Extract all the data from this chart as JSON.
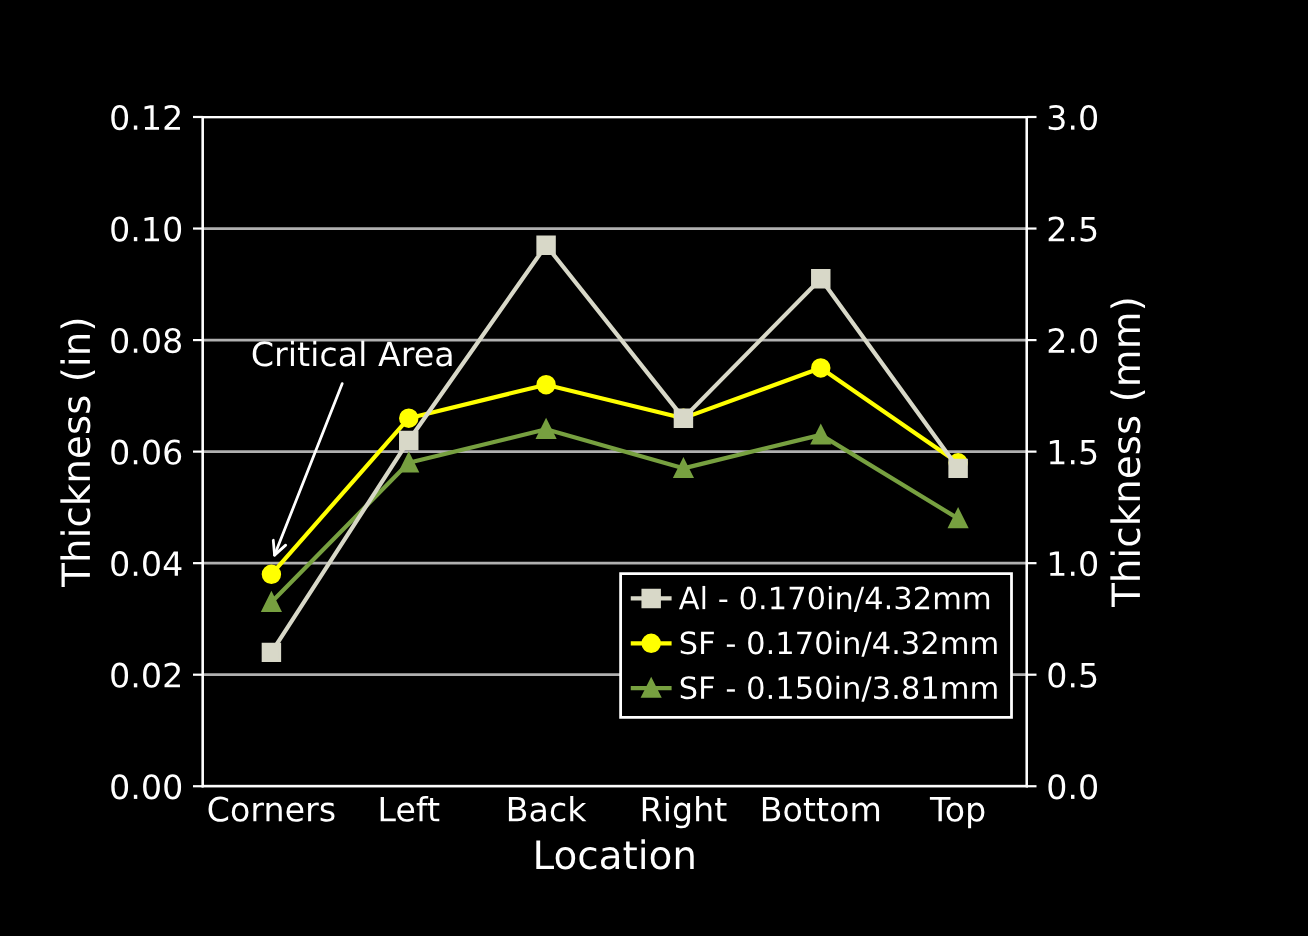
{
  "chart_data": {
    "type": "line",
    "xlabel": "Location",
    "ylabel": "Thickness (in)",
    "y2label": "Thickness (mm)",
    "categories": [
      "Corners",
      "Left",
      "Back",
      "Right",
      "Bottom",
      "Top"
    ],
    "series": [
      {
        "name": "Al - 0.170in/4.32mm",
        "color": "#d8d8c8",
        "marker": "square",
        "values": [
          0.024,
          0.062,
          0.097,
          0.066,
          0.091,
          0.057
        ]
      },
      {
        "name": "SF - 0.170in/4.32mm",
        "color": "#ffff00",
        "marker": "circle",
        "values": [
          0.038,
          0.066,
          0.072,
          0.066,
          0.075,
          0.058
        ]
      },
      {
        "name": "SF - 0.150in/3.81mm",
        "color": "#77a040",
        "marker": "triangle",
        "values": [
          0.033,
          0.058,
          0.064,
          0.057,
          0.063,
          0.048
        ]
      }
    ],
    "ylim": [
      0,
      0.12
    ],
    "yticks": [
      {
        "value": 0,
        "label": "0.00"
      },
      {
        "value": 0.02,
        "label": "0.02"
      },
      {
        "value": 0.04,
        "label": "0.04"
      },
      {
        "value": 0.06,
        "label": "0.06"
      },
      {
        "value": 0.08,
        "label": "0.08"
      },
      {
        "value": 0.1,
        "label": "0.10"
      },
      {
        "value": 0.12,
        "label": "0.12"
      }
    ],
    "y2lim": [
      0,
      3
    ],
    "y2ticks": [
      {
        "value": 0,
        "label": "0.0"
      },
      {
        "value": 0.5,
        "label": "0.5"
      },
      {
        "value": 1,
        "label": "1.0"
      },
      {
        "value": 1.5,
        "label": "1.5"
      },
      {
        "value": 2,
        "label": "2.0"
      },
      {
        "value": 2.5,
        "label": "2.5"
      },
      {
        "value": 3,
        "label": "3.0"
      }
    ],
    "grid": "y",
    "legend": "bottom right",
    "annotations": [
      {
        "text": "Critical Area",
        "x": "Corners",
        "y": 0.04
      }
    ]
  }
}
